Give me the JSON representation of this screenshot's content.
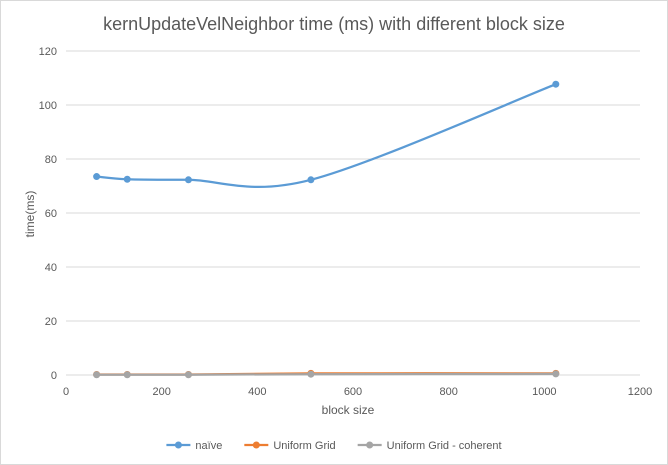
{
  "chart_data": {
    "type": "line",
    "title": "kernUpdateVelNeighbor time (ms) with different block size",
    "xlabel": "block size",
    "ylabel": "time(ms)",
    "xlim": [
      0,
      1200
    ],
    "ylim": [
      0,
      120
    ],
    "x_ticks": [
      0,
      200,
      400,
      600,
      800,
      1000,
      1200
    ],
    "y_ticks": [
      0,
      20,
      40,
      60,
      80,
      100,
      120
    ],
    "grid": "horizontal",
    "smooth": true,
    "legend_position": "bottom",
    "series": [
      {
        "name": "naïve",
        "color": "#5b9bd5",
        "x": [
          64,
          128,
          256,
          512,
          1024
        ],
        "y": [
          73.5,
          72.5,
          72.3,
          72.3,
          107.7
        ]
      },
      {
        "name": "Uniform Grid",
        "color": "#ed7d31",
        "x": [
          64,
          128,
          256,
          512,
          1024
        ],
        "y": [
          0.2,
          0.2,
          0.2,
          0.6,
          0.6
        ]
      },
      {
        "name": "Uniform Grid - coherent",
        "color": "#a5a5a5",
        "x": [
          64,
          128,
          256,
          512,
          1024
        ],
        "y": [
          0.1,
          0.1,
          0.1,
          0.3,
          0.4
        ]
      }
    ]
  }
}
